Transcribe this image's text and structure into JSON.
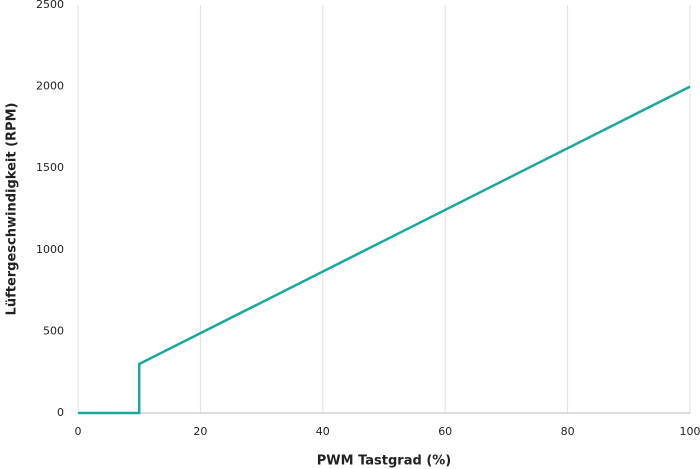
{
  "chart_data": {
    "type": "line",
    "x_label": "PWM Tastgrad (%)",
    "y_label": "Lüftergeschwindigkeit (RPM)",
    "x": [
      0,
      10,
      10,
      100
    ],
    "values": [
      0,
      0,
      300,
      2000
    ],
    "color": "#1aa89c",
    "xlim": [
      0,
      100
    ],
    "xticks": [
      0,
      20,
      40,
      60,
      80,
      100
    ],
    "ylim": [
      0,
      2500
    ],
    "yticks": [
      0,
      500,
      1000,
      1500,
      2000,
      2500
    ],
    "grid": "x"
  }
}
